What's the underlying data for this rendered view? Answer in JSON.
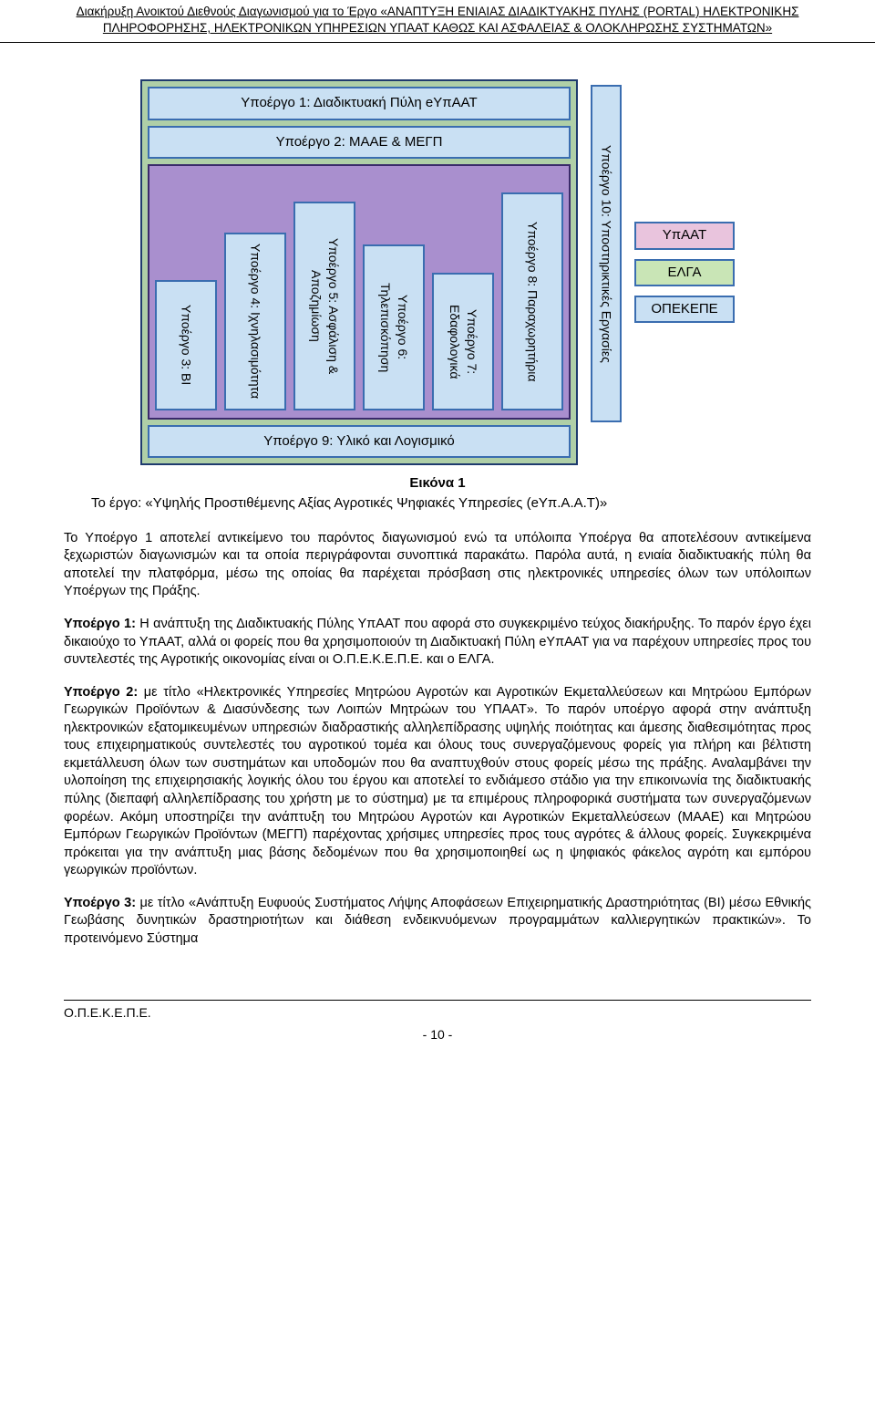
{
  "header": {
    "line1": "Διακήρυξη Ανοικτού Διεθνούς Διαγωνισμού για το Έργο «ΑΝΑΠΤΥΞΗ ΕΝΙΑΙΑΣ ΔΙΑΔΙΚΤΥΑΚΗΣ ΠΥΛΗΣ (PORTAL) ΗΛΕΚΤΡΟΝΙΚΗΣ ΠΛΗΡΟΦΟΡΗΣΗΣ, ΗΛΕΚΤΡΟΝΙΚΩΝ ΥΠΗΡΕΣΙΩΝ ΥΠΑΑΤ ΚΑΘΩΣ ΚΑΙ ΑΣΦΑΛΕΙΑΣ & ΟΛΟΚΛΗΡΩΣΗΣ ΣΥΣΤΗΜΑΤΩΝ»"
  },
  "diagram": {
    "top1": "Υποέργο 1: Διαδικτυακή Πύλη eΥπΑΑΤ",
    "top2": "Υποέργο 2: ΜΑΑΕ & ΜΕΓΠ",
    "cols": [
      "Υποέργο 3: BI",
      "Υποέργο 4: Ιχνηλασιμότητα",
      "Υποέργο 5: Ασφάλιση & Αποζημίωση",
      "Υποέργο 6: Τηλεπισκόπηση",
      "Υποέργο 7: Εδαφολογικά",
      "Υποέργο 8: Παραχωρητήρια"
    ],
    "bottom": "Υποέργο 9: Υλικό και Λογισμικό",
    "side": "Υποέργο 10: Υποστηρικτικές Εργασίες",
    "legend": [
      "ΥπΑΑΤ",
      "ΕΛΓΑ",
      "ΟΠΕΚΕΠΕ"
    ],
    "purple_bg": "#a98fce",
    "green_bg": "#afcfa7",
    "block_bg": "#c9e0f3",
    "border": "#3a6db0"
  },
  "caption": "Εικόνα 1",
  "subcaption": "Το έργο: «Υψηλής Προστιθέμενης Αξίας Αγροτικές Ψηφιακές Υπηρεσίες (eΥπ.Α.Α.Τ)»",
  "paras": {
    "p1": "Το Υποέργο 1 αποτελεί αντικείμενο του παρόντος διαγωνισμού ενώ τα υπόλοιπα Υποέργα θα αποτελέσουν αντικείμενα ξεχωριστών διαγωνισμών και τα οποία περιγράφονται συνοπτικά παρακάτω. Παρόλα αυτά, η ενιαία διαδικτυακής πύλη θα αποτελεί την πλατφόρμα, μέσω της οποίας θα παρέχεται πρόσβαση στις ηλεκτρονικές υπηρεσίες όλων των υπόλοιπων Υποέργων της Πράξης.",
    "p2a": "Υποέργο 1:",
    "p2b": " Η ανάπτυξη της Διαδικτυακής Πύλης ΥπΑΑΤ που αφορά στο συγκεκριμένο τεύχος διακήρυξης. Το παρόν έργο έχει δικαιούχο το ΥπΑΑΤ, αλλά οι φορείς που θα χρησιμοποιούν τη Διαδικτυακή Πύλη eΥπΑΑΤ για να παρέχουν υπηρεσίες προς του συντελεστές της Αγροτικής οικονομίας είναι οι Ο.Π.Ε.Κ.Ε.Π.Ε. και ο ΕΛΓΑ.",
    "p3a": "Υποέργο 2:",
    "p3b": " με τίτλο «Ηλεκτρονικές Υπηρεσίες Μητρώου Αγροτών και Αγροτικών Εκμεταλλεύσεων και Μητρώου Εμπόρων Γεωργικών Προϊόντων & Διασύνδεσης των Λοιπών Μητρώων του ΥΠΑΑΤ». Το παρόν υποέργο αφορά στην ανάπτυξη ηλεκτρονικών εξατομικευμένων υπηρεσιών διαδραστικής αλληλεπίδρασης υψηλής ποιότητας και άμεσης διαθεσιμότητας προς τους επιχειρηματικούς συντελεστές του αγροτικού τομέα και όλους τους συνεργαζόμενους φορείς για πλήρη και βέλτιστη εκμετάλλευση όλων των συστημάτων και υποδομών που θα αναπτυχθούν στους φορείς μέσω της πράξης. Αναλαμβάνει την υλοποίηση της επιχειρησιακής λογικής όλου του έργου και αποτελεί το ενδιάμεσο στάδιο για την επικοινωνία της διαδικτυακής πύλης (διεπαφή αλληλεπίδρασης του χρήστη με το σύστημα) με τα επιμέρους πληροφορικά συστήματα των συνεργαζόμενων φορέων. Ακόμη υποστηρίζει την ανάπτυξη του Μητρώου Αγροτών και Αγροτικών Εκμεταλλεύσεων (ΜΑΑΕ) και Μητρώου Εμπόρων Γεωργικών Προϊόντων (ΜΕΓΠ) παρέχοντας χρήσιμες υπηρεσίες προς τους αγρότες & άλλους φορείς. Συγκεκριμένα πρόκειται για την ανάπτυξη μιας βάσης δεδομένων που θα χρησιμοποιηθεί ως η ψηφιακός φάκελος αγρότη και εμπόρου γεωργικών προϊόντων.",
    "p4a": "Υποέργο 3:",
    "p4b": " με τίτλο «Ανάπτυξη Ευφυούς Συστήματος Λήψης Αποφάσεων Επιχειρηματικής Δραστηριότητας (BI) μέσω Εθνικής Γεωβάσης δυνητικών δραστηριοτήτων και διάθεση ενδεικνυόμενων προγραμμάτων καλλιεργητικών πρακτικών». Το προτεινόμενο Σύστημα"
  },
  "footer": {
    "org": "Ο.Π.Ε.Κ.Ε.Π.Ε.",
    "page": "- 10 -"
  }
}
